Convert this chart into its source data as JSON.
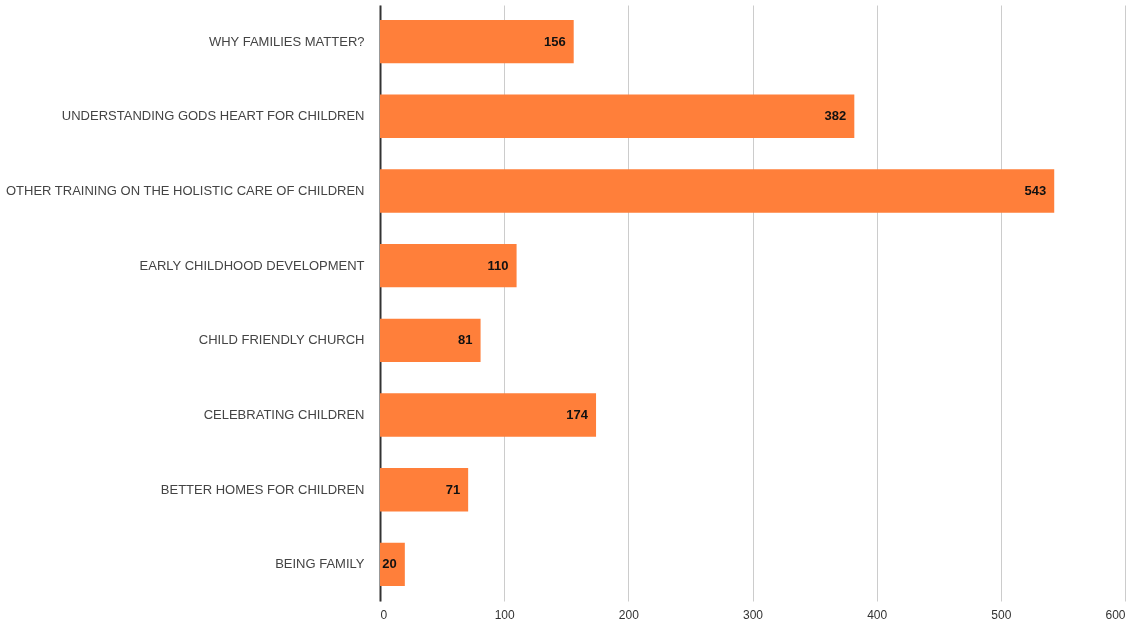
{
  "chart_data": {
    "type": "bar",
    "orientation": "horizontal",
    "categories": [
      "WHY FAMILIES MATTER?",
      "UNDERSTANDING GODS HEART FOR CHILDREN",
      "OTHER TRAINING ON THE HOLISTIC CARE OF CHILDREN",
      "EARLY CHILDHOOD DEVELOPMENT",
      "CHILD FRIENDLY CHURCH",
      "CELEBRATING CHILDREN",
      "BETTER HOMES FOR CHILDREN",
      "BEING FAMILY"
    ],
    "values": [
      156,
      382,
      543,
      110,
      81,
      174,
      71,
      20
    ],
    "color": "#ff7f3a",
    "xlim": [
      0,
      600
    ],
    "xticks": [
      0,
      100,
      200,
      300,
      400,
      500,
      600
    ],
    "grid": "x",
    "data_labels": true
  }
}
